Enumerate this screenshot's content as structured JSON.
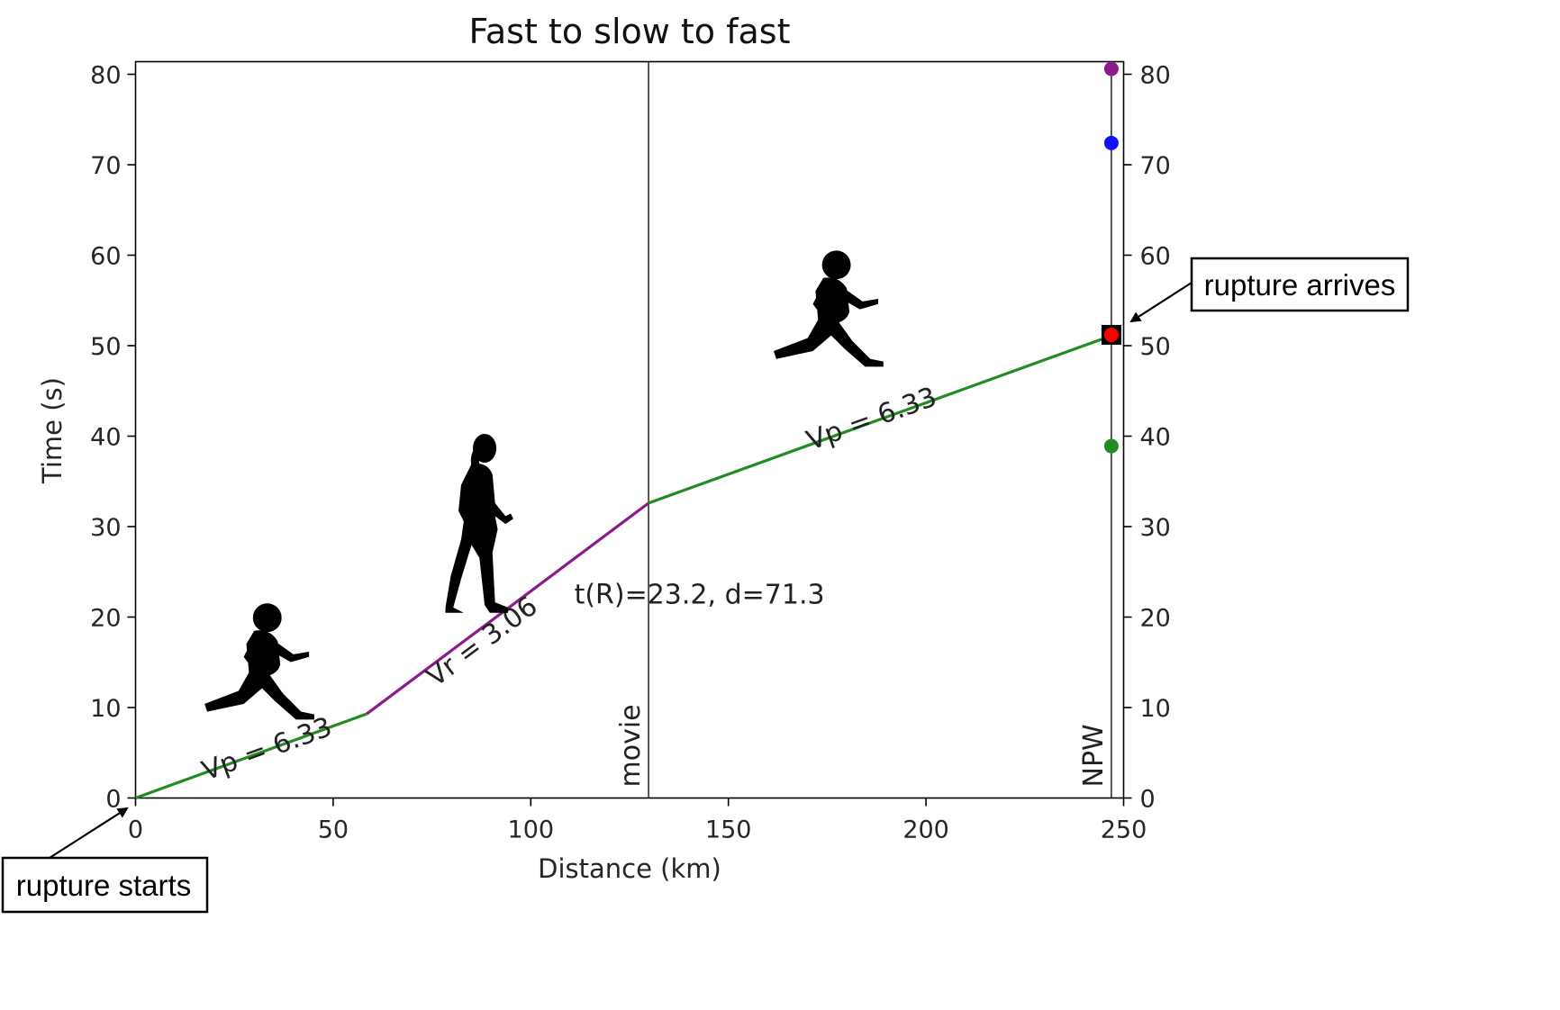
{
  "chart_data": {
    "type": "line",
    "title": "Fast to slow to fast",
    "xlabel": "Distance (km)",
    "ylabel": "Time (s)",
    "xlim": [
      0,
      250
    ],
    "ylim": [
      0,
      80
    ],
    "xticks": [
      0,
      50,
      100,
      150,
      200,
      250
    ],
    "yticks": [
      0,
      10,
      20,
      30,
      40,
      50,
      60,
      70,
      80
    ],
    "right_yticks": [
      0,
      10,
      20,
      30,
      40,
      50,
      60,
      70,
      80
    ],
    "series": [
      {
        "name": "Vp = 6.33",
        "color": "#228B22",
        "x": [
          0,
          58.5
        ],
        "y": [
          0,
          9.3
        ]
      },
      {
        "name": "Vr = 3.06",
        "color": "#8B1A8B",
        "x": [
          58.5,
          129.8
        ],
        "y": [
          9.3,
          32.6
        ]
      },
      {
        "name": "Vp = 6.33",
        "color": "#228B22",
        "x": [
          129.8,
          246.9
        ],
        "y": [
          32.6,
          51.1
        ]
      }
    ],
    "segment_labels": [
      {
        "text": "Vp = 6.33",
        "x": 34,
        "y": 4.5
      },
      {
        "text": "Vr = 3.06",
        "x": 89,
        "y": 16.5
      },
      {
        "text": "Vp = 6.33",
        "x": 187,
        "y": 41
      }
    ],
    "vertical_lines": [
      {
        "label": "movie",
        "x": 129.8
      },
      {
        "label": "NPW",
        "x": 246.9
      }
    ],
    "station_points": [
      {
        "x": 246.9,
        "y": 80.6,
        "color": "#8B1A8B"
      },
      {
        "x": 246.9,
        "y": 72.4,
        "color": "#1010ff"
      },
      {
        "x": 246.9,
        "y": 51.2,
        "color": "#ff0000"
      },
      {
        "x": 246.9,
        "y": 38.9,
        "color": "#228B22"
      }
    ],
    "arrival_marker": {
      "x": 246.9,
      "y": 51.2
    },
    "annotation": {
      "text": "t(R)=23.2, d=71.3",
      "x": 111,
      "y": 21.5
    },
    "figures": [
      {
        "kind": "runner",
        "x": 32,
        "y": 13
      },
      {
        "kind": "walker",
        "x": 87,
        "y": 30
      },
      {
        "kind": "runner",
        "x": 176,
        "y": 52
      }
    ]
  },
  "callouts": {
    "start": "rupture starts",
    "arrive": "rupture arrives"
  }
}
